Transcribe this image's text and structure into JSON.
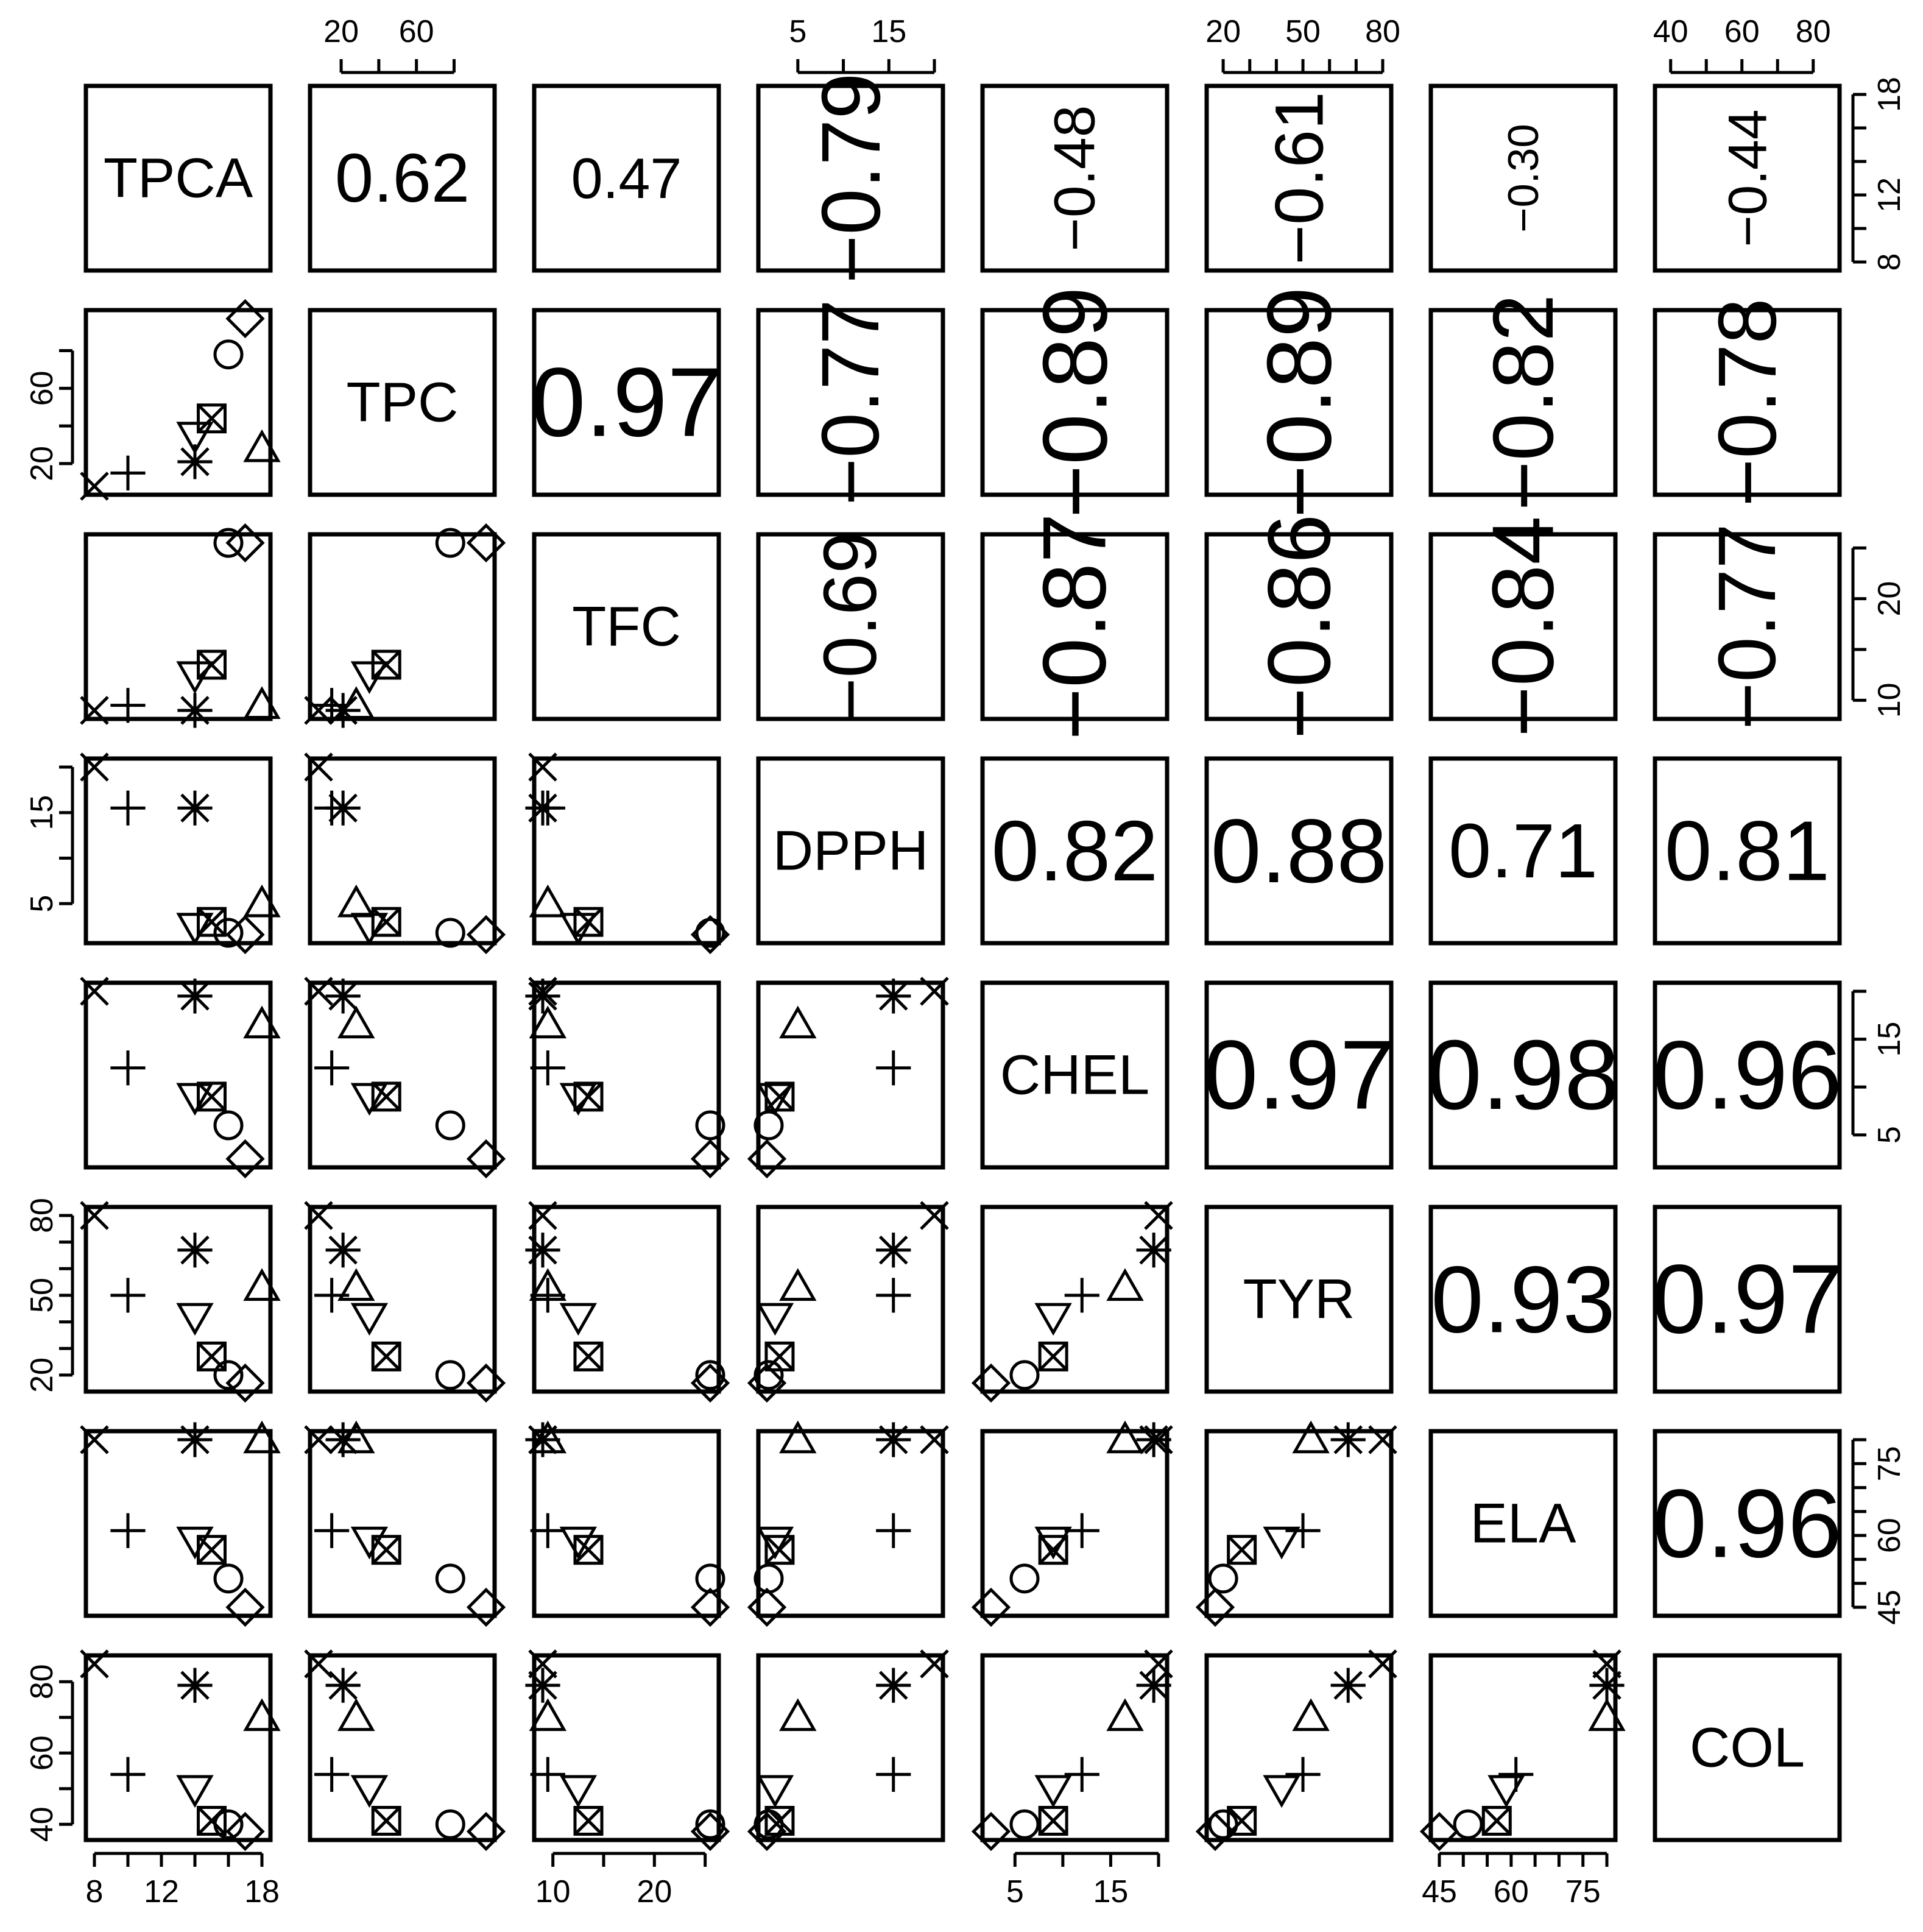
{
  "chart_data": {
    "type": "scatter",
    "subtype": "pairs-matrix",
    "variables": [
      "TPCA",
      "TPC",
      "TFC",
      "DPPH",
      "CHEL",
      "TYR",
      "ELA",
      "COL"
    ],
    "upper_panel": "correlation coefficient (text size scaled by |r|)",
    "lower_panel": "scatter",
    "correlations": [
      [
        null,
        "0.62",
        "0.47",
        "−0.79",
        "−0.48",
        "−0.61",
        "−0.30",
        "−0.44"
      ],
      [
        null,
        null,
        "0.97",
        "−0.77",
        "−0.89",
        "−0.89",
        "−0.82",
        "−0.78"
      ],
      [
        null,
        null,
        null,
        "−0.69",
        "−0.87",
        "−0.86",
        "−0.84",
        "−0.77"
      ],
      [
        null,
        null,
        null,
        null,
        "0.82",
        "0.88",
        "0.71",
        "0.81"
      ],
      [
        null,
        null,
        null,
        null,
        null,
        "0.97",
        "0.98",
        "0.96"
      ],
      [
        null,
        null,
        null,
        null,
        null,
        null,
        "0.93",
        "0.97"
      ],
      [
        null,
        null,
        null,
        null,
        null,
        null,
        null,
        "0.96"
      ]
    ],
    "marker_legend": [
      "x",
      "plus",
      "asterisk",
      "triangle-up",
      "triangle-down",
      "square-x",
      "circle",
      "diamond"
    ],
    "points": {
      "TPCA": [
        8,
        10,
        14,
        18,
        14,
        15,
        16,
        17
      ],
      "TPC": [
        8,
        15,
        21,
        28,
        35,
        44,
        78,
        97
      ],
      "TFC": [
        9,
        9.5,
        9,
        9.5,
        12.5,
        13.5,
        25.5,
        25.5
      ],
      "DPPH": [
        20,
        15.5,
        15.5,
        5,
        2.5,
        3,
        1.8,
        1.6
      ],
      "CHEL": [
        20,
        12,
        19.5,
        16.5,
        9,
        9,
        6,
        2.5
      ],
      "TYR": [
        80,
        50,
        67,
        53,
        42,
        27,
        20,
        17
      ],
      "ELA": [
        80,
        61,
        80,
        80,
        59,
        57,
        51,
        45
      ],
      "COL": [
        85,
        54,
        79,
        70,
        50,
        41,
        40,
        38
      ]
    },
    "ranges": {
      "TPCA": [
        8,
        18
      ],
      "TPC": [
        8,
        97
      ],
      "TFC": [
        9,
        25.5
      ],
      "DPPH": [
        1.6,
        20
      ],
      "CHEL": [
        2.5,
        20
      ],
      "TYR": [
        17,
        80
      ],
      "ELA": [
        45,
        80
      ],
      "COL": [
        38,
        85
      ]
    },
    "axes": {
      "bottom": [
        {
          "col": 0,
          "ticks": [
            8,
            10,
            12,
            14,
            16,
            18
          ],
          "labels": [
            "8",
            "12",
            "18"
          ],
          "label_values": [
            8,
            12,
            18
          ]
        },
        {
          "col": 2,
          "ticks": [
            10,
            15,
            20,
            25
          ],
          "labels": [
            "10",
            "20"
          ],
          "label_values": [
            10,
            20
          ]
        },
        {
          "col": 4,
          "ticks": [
            5,
            10,
            15,
            20
          ],
          "labels": [
            "5",
            "15"
          ],
          "label_values": [
            5,
            15
          ]
        },
        {
          "col": 6,
          "ticks": [
            45,
            50,
            55,
            60,
            65,
            70,
            75,
            80
          ],
          "labels": [
            "45",
            "60",
            "75"
          ],
          "label_values": [
            45,
            60,
            75
          ]
        }
      ],
      "top": [
        {
          "col": 1,
          "ticks": [
            20,
            40,
            60,
            80
          ],
          "labels": [
            "20",
            "60"
          ],
          "label_values": [
            20,
            60
          ]
        },
        {
          "col": 3,
          "ticks": [
            5,
            10,
            15,
            20
          ],
          "labels": [
            "5",
            "15"
          ],
          "label_values": [
            5,
            15
          ]
        },
        {
          "col": 5,
          "ticks": [
            20,
            30,
            40,
            50,
            60,
            70,
            80
          ],
          "labels": [
            "20",
            "50",
            "80"
          ],
          "label_values": [
            20,
            50,
            80
          ]
        },
        {
          "col": 7,
          "ticks": [
            40,
            50,
            60,
            70,
            80
          ],
          "labels": [
            "40",
            "60",
            "80"
          ],
          "label_values": [
            40,
            60,
            80
          ]
        }
      ],
      "left": [
        {
          "row": 1,
          "ticks": [
            20,
            40,
            60,
            80
          ],
          "labels": [
            "20",
            "60"
          ],
          "label_values": [
            20,
            60
          ]
        },
        {
          "row": 3,
          "ticks": [
            5,
            10,
            15,
            20
          ],
          "labels": [
            "5",
            "15"
          ],
          "label_values": [
            5,
            15
          ]
        },
        {
          "row": 5,
          "ticks": [
            20,
            30,
            40,
            50,
            60,
            70,
            80
          ],
          "labels": [
            "20",
            "50",
            "80"
          ],
          "label_values": [
            20,
            50,
            80
          ]
        },
        {
          "row": 7,
          "ticks": [
            40,
            50,
            60,
            70,
            80
          ],
          "labels": [
            "40",
            "60",
            "80"
          ],
          "label_values": [
            40,
            60,
            80
          ]
        }
      ],
      "right": [
        {
          "row": 0,
          "ticks": [
            8,
            10,
            12,
            14,
            16,
            18
          ],
          "labels": [
            "8",
            "12",
            "18"
          ],
          "label_values": [
            8,
            12,
            18
          ]
        },
        {
          "row": 2,
          "ticks": [
            10,
            15,
            20,
            25
          ],
          "labels": [
            "10",
            "20"
          ],
          "label_values": [
            10,
            20
          ]
        },
        {
          "row": 4,
          "ticks": [
            5,
            10,
            15,
            20
          ],
          "labels": [
            "5",
            "15"
          ],
          "label_values": [
            5,
            15
          ]
        },
        {
          "row": 6,
          "ticks": [
            45,
            50,
            55,
            60,
            65,
            70,
            75,
            80
          ],
          "labels": [
            "45",
            "60",
            "75"
          ],
          "label_values": [
            45,
            60,
            75
          ]
        }
      ]
    }
  }
}
